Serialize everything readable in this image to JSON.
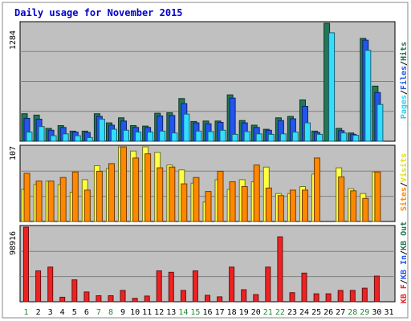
{
  "chart_data": [
    {
      "type": "bar",
      "title": "Daily usage for November 2015",
      "ymax_label": "1284",
      "legend": [
        "Pages",
        "Files",
        "Hits"
      ],
      "legend_colors": {
        "Pages": "#33ddff",
        "Files": "#2255ee",
        "Hits": "#227755"
      },
      "categories": [
        "1",
        "2",
        "3",
        "4",
        "5",
        "6",
        "7",
        "8",
        "9",
        "10",
        "11",
        "12",
        "13",
        "14",
        "15",
        "16",
        "17",
        "18",
        "19",
        "20",
        "21",
        "22",
        "23",
        "24",
        "25",
        "26",
        "27",
        "28",
        "29",
        "30",
        "31"
      ],
      "weekend": [
        1,
        7,
        8,
        14,
        15,
        21,
        22,
        28,
        29
      ],
      "ylim": [
        0,
        1284
      ],
      "series": [
        {
          "name": "Hits",
          "color": "#227755",
          "values": [
            300,
            285,
            140,
            170,
            110,
            110,
            300,
            200,
            255,
            170,
            165,
            305,
            310,
            465,
            215,
            220,
            220,
            505,
            225,
            175,
            130,
            255,
            270,
            450,
            110,
            1284,
            140,
            90,
            1120,
            600,
            0
          ]
        },
        {
          "name": "Files",
          "color": "#2255ee",
          "values": [
            250,
            240,
            120,
            150,
            100,
            95,
            270,
            175,
            220,
            150,
            150,
            275,
            280,
            410,
            200,
            190,
            205,
            470,
            200,
            150,
            120,
            225,
            245,
            380,
            95,
            0,
            115,
            75,
            1100,
            530,
            0
          ]
        },
        {
          "name": "Pages",
          "color": "#33ddff",
          "values": [
            100,
            160,
            60,
            80,
            60,
            40,
            240,
            130,
            120,
            100,
            100,
            110,
            90,
            295,
            110,
            105,
            120,
            75,
            105,
            80,
            75,
            80,
            100,
            200,
            75,
            1180,
            90,
            65,
            990,
            400,
            0
          ]
        }
      ]
    },
    {
      "type": "bar",
      "ymax_label": "107",
      "legend": [
        "Visits",
        "Sites"
      ],
      "legend_colors": {
        "Visits": "#eeee33",
        "Sites": "#ff8800"
      },
      "ylim": [
        0,
        107
      ],
      "series": [
        {
          "name": "Visits",
          "color": "#ffff44",
          "values": [
            46,
            53,
            58,
            53,
            42,
            60,
            80,
            76,
            107,
            101,
            107,
            99,
            81,
            74,
            55,
            28,
            60,
            46,
            60,
            57,
            78,
            40,
            40,
            50,
            68,
            0,
            77,
            47,
            40,
            71,
            0
          ]
        },
        {
          "name": "Sites",
          "color": "#ff8800",
          "values": [
            69,
            58,
            58,
            63,
            71,
            45,
            72,
            83,
            107,
            91,
            97,
            77,
            78,
            54,
            63,
            43,
            72,
            57,
            50,
            81,
            48,
            37,
            45,
            45,
            91,
            0,
            64,
            44,
            33,
            71,
            0
          ]
        }
      ]
    },
    {
      "type": "bar",
      "ymax_label": "98916",
      "legend": [
        "KB F",
        "KB In",
        "KB Out"
      ],
      "legend_colors": {
        "KB F": "#ee2222",
        "KB In": "#2255ee",
        "KB Out": "#227755"
      },
      "ylim": [
        0,
        98916
      ],
      "series": [
        {
          "name": "KB F",
          "color": "#ee2222",
          "values": [
            98916,
            41000,
            46000,
            6000,
            29000,
            13000,
            8000,
            8000,
            15000,
            4500,
            7500,
            41000,
            39000,
            15000,
            41000,
            8500,
            6500,
            46000,
            16000,
            9500,
            46000,
            86000,
            12000,
            38000,
            10500,
            10500,
            15000,
            15000,
            18000,
            34000,
            0
          ]
        }
      ]
    }
  ]
}
